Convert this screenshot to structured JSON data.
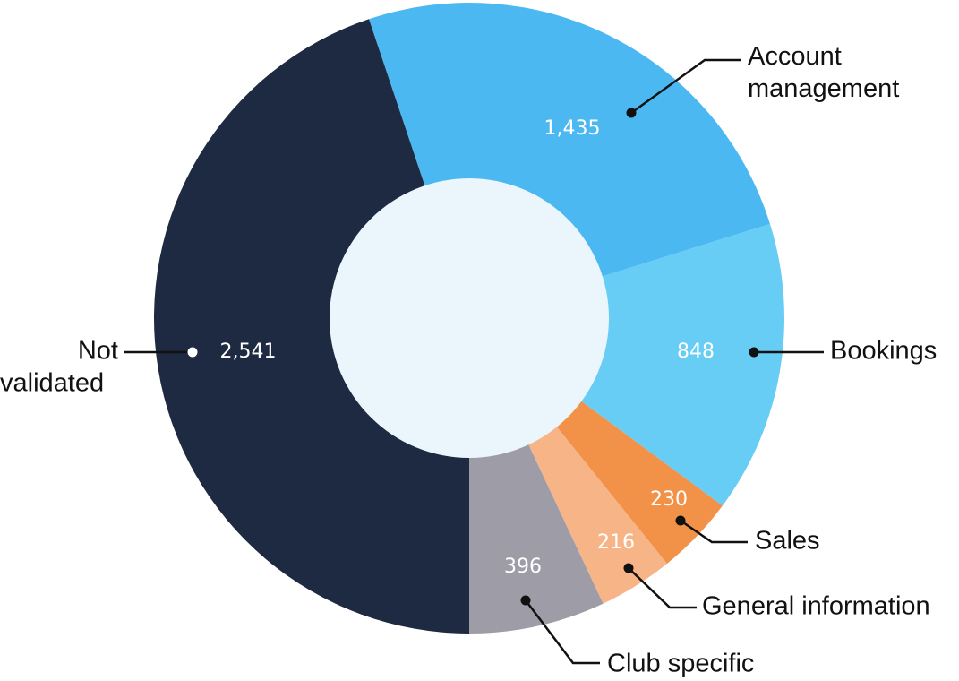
{
  "chart_data": {
    "type": "pie",
    "variant": "donut",
    "start_angle_deg": 180,
    "direction": "counterclockwise-from-bottom-to-right",
    "slices": [
      {
        "label": "Club specific",
        "value": 396,
        "display": "396",
        "color": "#9e9ca6"
      },
      {
        "label": "General information",
        "value": 216,
        "display": "216",
        "color": "#f6b487"
      },
      {
        "label": "Sales",
        "value": 230,
        "display": "230",
        "color": "#f29148"
      },
      {
        "label": "Bookings",
        "value": 848,
        "display": "848",
        "color": "#68cdf5"
      },
      {
        "label": "Account management",
        "value": 1435,
        "display": "1,435",
        "color": "#4cb8f2"
      },
      {
        "label": "Not validated",
        "value": 2541,
        "display": "2,541",
        "color": "#1e2a41"
      }
    ],
    "center_color": "#eaf6fc"
  }
}
